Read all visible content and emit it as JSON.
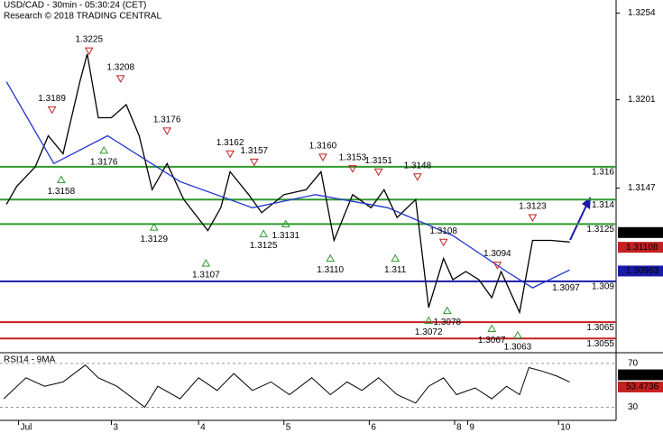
{
  "chart_data": {
    "type": "line",
    "title": "USD/CAD - 30min - 05:30:24 (CET)",
    "subtitle": "Research © 2018 TRADING CENTRAL",
    "xlim": [
      -2,
      330
    ],
    "xticks": [
      {
        "value": 8,
        "label": "Jul"
      },
      {
        "value": 58,
        "label": "3"
      },
      {
        "value": 105,
        "label": "4"
      },
      {
        "value": 151,
        "label": "5"
      },
      {
        "value": 197,
        "label": "6"
      },
      {
        "value": 243,
        "label": "8"
      },
      {
        "value": 250,
        "label": "9"
      },
      {
        "value": 299,
        "label": "10"
      }
    ],
    "ylim": [
      1.3048,
      1.3262
    ],
    "yticks": [
      1.3147,
      1.3201,
      1.3254
    ],
    "series": [
      {
        "color": "#000000",
        "x": [
          1.5,
          7,
          17,
          24,
          32,
          41,
          45,
          51,
          58,
          66,
          73,
          80,
          88,
          97,
          110,
          117,
          122,
          132,
          139,
          151,
          163,
          171,
          178,
          188,
          198,
          205,
          212,
          222,
          229,
          237,
          242,
          249,
          256,
          263,
          268,
          278,
          285,
          295,
          305
        ],
        "values": [
          1.3137,
          1.3148,
          1.316,
          1.3179,
          1.3168,
          1.3212,
          1.3229,
          1.319,
          1.319,
          1.3198,
          1.3179,
          1.3146,
          1.3162,
          1.314,
          1.3121,
          1.3135,
          1.3157,
          1.3143,
          1.3132,
          1.3143,
          1.3146,
          1.3157,
          1.3115,
          1.3143,
          1.3135,
          1.3146,
          1.3129,
          1.314,
          1.3074,
          1.3104,
          1.3091,
          1.3096,
          1.3091,
          1.308,
          1.3096,
          1.3071,
          1.3115,
          1.3115,
          1.3114
        ]
      },
      {
        "color": "#2233cc",
        "x": [
          1.5,
          27,
          56,
          95,
          134,
          168,
          207,
          242,
          271,
          285,
          305
        ],
        "values": [
          1.3212,
          1.3162,
          1.3179,
          1.3151,
          1.3135,
          1.3143,
          1.3135,
          1.3118,
          1.3096,
          1.3086,
          1.3097
        ]
      }
    ],
    "levels": [
      {
        "value": 1.316,
        "color": "#2e9a2e"
      },
      {
        "value": 1.314,
        "color": "#2e9a2e"
      },
      {
        "value": 1.3125,
        "color": "#2e9a2e"
      },
      {
        "value": 1.309,
        "color": "#1a1aa8"
      },
      {
        "value": 1.3065,
        "color": "#c42020"
      },
      {
        "value": 1.3055,
        "color": "#c42020"
      }
    ],
    "price_boxes": [
      {
        "value": 1.31132,
        "color": "#000000"
      },
      {
        "value": 1.31108,
        "color": "#c42020"
      },
      {
        "value": 1.30963,
        "color": "#1a1aa8"
      }
    ],
    "annotations": [
      {
        "x": 46,
        "value": 1.3225,
        "kind": "high"
      },
      {
        "x": 63,
        "value": 1.3208,
        "kind": "high"
      },
      {
        "x": 26,
        "value": 1.3189,
        "kind": "high"
      },
      {
        "x": 88,
        "value": 1.3176,
        "kind": "high"
      },
      {
        "x": 54,
        "value": 1.3176,
        "kind": "low"
      },
      {
        "x": 31,
        "value": 1.3158,
        "kind": "low"
      },
      {
        "x": 122,
        "value": 1.3162,
        "kind": "high"
      },
      {
        "x": 135,
        "value": 1.3157,
        "kind": "high"
      },
      {
        "x": 172,
        "value": 1.316,
        "label": "1.3160",
        "kind": "high"
      },
      {
        "x": 188,
        "value": 1.3153,
        "kind": "high"
      },
      {
        "x": 202,
        "value": 1.3151,
        "kind": "high"
      },
      {
        "x": 223,
        "value": 1.3148,
        "kind": "high"
      },
      {
        "x": 81,
        "value": 1.3129,
        "kind": "low"
      },
      {
        "x": 140,
        "value": 1.3125,
        "kind": "low"
      },
      {
        "x": 152,
        "value": 1.3131,
        "kind": "low"
      },
      {
        "x": 109,
        "value": 1.3107,
        "kind": "low"
      },
      {
        "x": 176,
        "value": 1.311,
        "label": "1.3110",
        "kind": "low"
      },
      {
        "x": 211,
        "value": 1.311,
        "kind": "low"
      },
      {
        "x": 237,
        "value": 1.3108,
        "kind": "high"
      },
      {
        "x": 285,
        "value": 1.3123,
        "kind": "high"
      },
      {
        "x": 266,
        "value": 1.3094,
        "kind": "high"
      },
      {
        "x": 229,
        "value": 1.3072,
        "kind": "low"
      },
      {
        "x": 239,
        "value": 1.3078,
        "kind": "low"
      },
      {
        "x": 263,
        "value": 1.3067,
        "kind": "low"
      },
      {
        "x": 277,
        "value": 1.3063,
        "kind": "low"
      },
      {
        "x": 303,
        "value": 1.3097,
        "kind": "note"
      }
    ],
    "rsi": {
      "label": "RSI14 - 9MA",
      "ylim": [
        18,
        79
      ],
      "yticks": [
        30,
        70
      ],
      "series": [
        {
          "color": "#000000",
          "x": [
            0,
            12,
            22,
            32,
            44,
            51,
            61,
            76,
            83,
            95,
            105,
            115,
            124,
            134,
            144,
            154,
            166,
            176,
            185,
            193,
            202,
            212,
            222,
            229,
            237,
            244,
            254,
            263,
            271,
            278,
            283,
            290,
            298,
            305
          ],
          "values": [
            37.7,
            56.9,
            49.2,
            53.1,
            68.5,
            56.9,
            49.2,
            30,
            49.2,
            37.7,
            56.9,
            45.4,
            60.8,
            45.4,
            53.1,
            41.5,
            56.9,
            41.5,
            53.1,
            45.4,
            56.9,
            41.5,
            33.8,
            49.2,
            56.9,
            41.5,
            47.7,
            37.7,
            49.2,
            41.5,
            66.2,
            63.1,
            58.5,
            53.1
          ]
        }
      ],
      "boxes": [
        {
          "value": 56.291,
          "color": "#000000"
        },
        {
          "value": 53.4736,
          "color": "#c42020"
        }
      ]
    }
  }
}
